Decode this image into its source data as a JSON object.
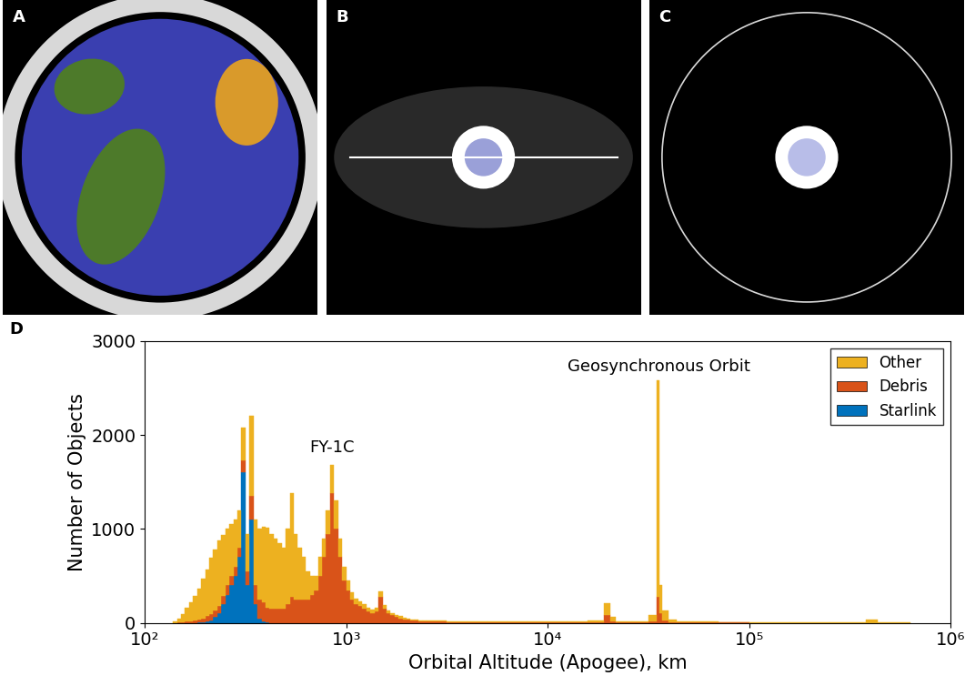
{
  "panel_labels": [
    "A",
    "B",
    "C",
    "D"
  ],
  "chart_data": {
    "type": "histogram",
    "x_label": "Orbital Altitude (Apogee), km",
    "y_label": "Number of Objects",
    "log": "x",
    "stacked": true,
    "grid": false,
    "legend": "upper right",
    "xlim": [
      100,
      1000000
    ],
    "xticks": [
      {
        "value": 100,
        "label": "10²"
      },
      {
        "value": 1000,
        "label": "10³"
      },
      {
        "value": 10000,
        "label": "10⁴"
      },
      {
        "value": 100000,
        "label": "10⁵"
      },
      {
        "value": 1000000,
        "label": "10⁶"
      }
    ],
    "ylim": [
      0,
      3000
    ],
    "yticks": [
      0,
      1000,
      2000,
      3000
    ],
    "annotations": [
      {
        "text": "FY-1C",
        "x": 850,
        "y": 1780
      },
      {
        "text": "Geosynchronous Orbit",
        "x": 35786,
        "y": 2640
      }
    ],
    "bins": [
      138.0,
      144.5,
      151.4,
      158.5,
      166.0,
      173.8,
      182.0,
      190.5,
      199.5,
      208.9,
      218.8,
      229.1,
      239.9,
      251.2,
      263.0,
      275.4,
      288.4,
      302.0,
      316.2,
      331.1,
      346.7,
      363.1,
      380.2,
      398.1,
      416.9,
      436.5,
      457.1,
      478.6,
      501.2,
      524.8,
      549.5,
      575.4,
      602.6,
      631.0,
      660.7,
      691.8,
      724.4,
      758.6,
      794.3,
      831.8,
      871.0,
      912.0,
      955.0,
      1000,
      1047,
      1096,
      1148,
      1202,
      1259,
      1318,
      1380,
      1445,
      1514,
      1585,
      1660,
      1738,
      1820,
      1905,
      1995,
      2089,
      2188,
      2291,
      2399,
      2512,
      3162,
      3981,
      5012,
      6310,
      7943,
      10000,
      12589,
      15849,
      19055,
      20417,
      21878,
      26303,
      31623,
      34674,
      35892,
      37154,
      39811,
      43652,
      52481,
      70795,
      100000,
      158489,
      251189,
      380189,
      436516,
      630957
    ],
    "series": [
      {
        "name": "Other",
        "color": "#EDB120",
        "values": [
          20,
          40,
          80,
          150,
          200,
          260,
          330,
          420,
          500,
          600,
          650,
          700,
          650,
          600,
          550,
          500,
          400,
          350,
          400,
          850,
          700,
          750,
          800,
          850,
          800,
          750,
          700,
          650,
          800,
          1100,
          700,
          550,
          450,
          300,
          200,
          150,
          200,
          200,
          250,
          300,
          300,
          200,
          150,
          100,
          80,
          60,
          50,
          50,
          40,
          40,
          40,
          60,
          40,
          30,
          25,
          20,
          20,
          15,
          15,
          10,
          10,
          10,
          10,
          10,
          10,
          10,
          8,
          8,
          8,
          10,
          10,
          20,
          130,
          40,
          15,
          15,
          60,
          2300,
          300,
          100,
          30,
          15,
          10,
          5,
          5,
          5,
          5,
          40,
          5
        ]
      },
      {
        "name": "Debris",
        "color": "#D95319",
        "values": [
          0,
          5,
          10,
          15,
          20,
          25,
          30,
          40,
          50,
          60,
          70,
          80,
          90,
          100,
          100,
          100,
          100,
          130,
          150,
          250,
          200,
          200,
          200,
          150,
          150,
          150,
          150,
          150,
          200,
          280,
          250,
          250,
          250,
          250,
          300,
          350,
          500,
          700,
          950,
          1380,
          1000,
          700,
          450,
          350,
          250,
          200,
          180,
          150,
          120,
          100,
          120,
          280,
          150,
          100,
          80,
          60,
          50,
          40,
          35,
          30,
          25,
          20,
          20,
          15,
          10,
          8,
          6,
          5,
          5,
          5,
          5,
          10,
          80,
          20,
          5,
          5,
          20,
          280,
          100,
          30,
          10,
          5,
          3,
          2,
          1,
          1,
          0,
          0,
          0
        ]
      },
      {
        "name": "Starlink",
        "color": "#0072BD",
        "values": [
          0,
          0,
          0,
          0,
          0,
          0,
          5,
          10,
          20,
          30,
          60,
          100,
          200,
          300,
          400,
          500,
          700,
          1600,
          400,
          1100,
          200,
          50,
          20,
          10,
          0,
          0,
          0,
          0,
          0,
          0,
          0,
          0,
          0,
          0,
          0,
          0,
          0,
          0,
          0,
          0,
          0,
          0,
          0,
          0,
          0,
          0,
          0,
          0,
          0,
          0,
          0,
          0,
          0,
          0,
          0,
          0,
          0,
          0,
          0,
          0,
          0,
          0,
          0,
          0,
          0,
          0,
          0,
          0,
          0,
          0,
          0,
          0,
          0,
          0,
          0,
          0,
          0,
          0,
          0,
          0,
          0,
          0,
          0,
          0,
          0,
          0,
          0,
          0,
          0
        ]
      }
    ]
  }
}
